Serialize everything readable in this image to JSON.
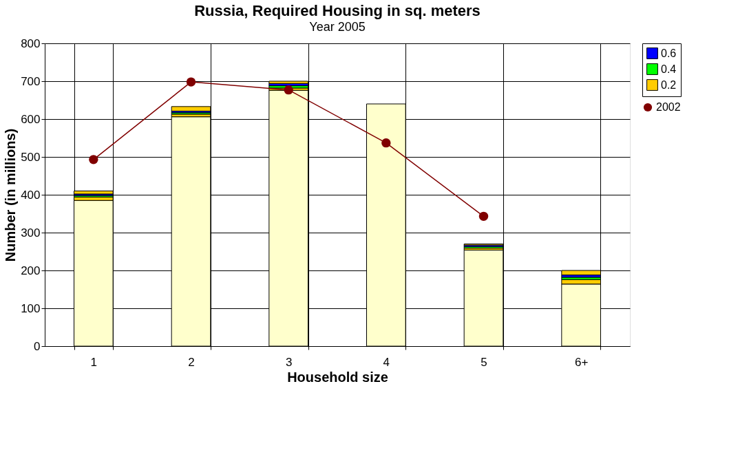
{
  "chart_data": {
    "type": "bar",
    "title": "Russia, Required Housing in sq. meters",
    "subtitle": "Year   2005",
    "xlabel": "Household size",
    "ylabel": "Number (in millions)",
    "categories": [
      "1",
      "2",
      "3",
      "4",
      "5",
      "6+"
    ],
    "stacked": true,
    "series": [
      {
        "color": "#ffffcc",
        "values": [
          385,
          606,
          676,
          640,
          254,
          164
        ]
      },
      {
        "name": "0.2",
        "color": "#ffcc00",
        "values": [
          9,
          7,
          6,
          null,
          5,
          12
        ]
      },
      {
        "name": "0.4",
        "color": "#00ff00",
        "values": [
          4,
          4,
          6,
          null,
          4,
          6
        ]
      },
      {
        "name": "0.6",
        "color": "#0000ff",
        "values": [
          4,
          4,
          6,
          null,
          4,
          6
        ]
      },
      {
        "color": "#ffcc00",
        "values": [
          8,
          12,
          6,
          null,
          3,
          12
        ]
      },
      {
        "name": "2002",
        "type": "line",
        "color": "#800000",
        "values": [
          493,
          698,
          677,
          537,
          343,
          null
        ]
      }
    ],
    "ylim": [
      0,
      800
    ],
    "yticks": [
      0,
      100,
      200,
      300,
      400,
      500,
      600,
      700,
      800
    ],
    "grid": true,
    "legend": "right",
    "marker": "circle"
  }
}
